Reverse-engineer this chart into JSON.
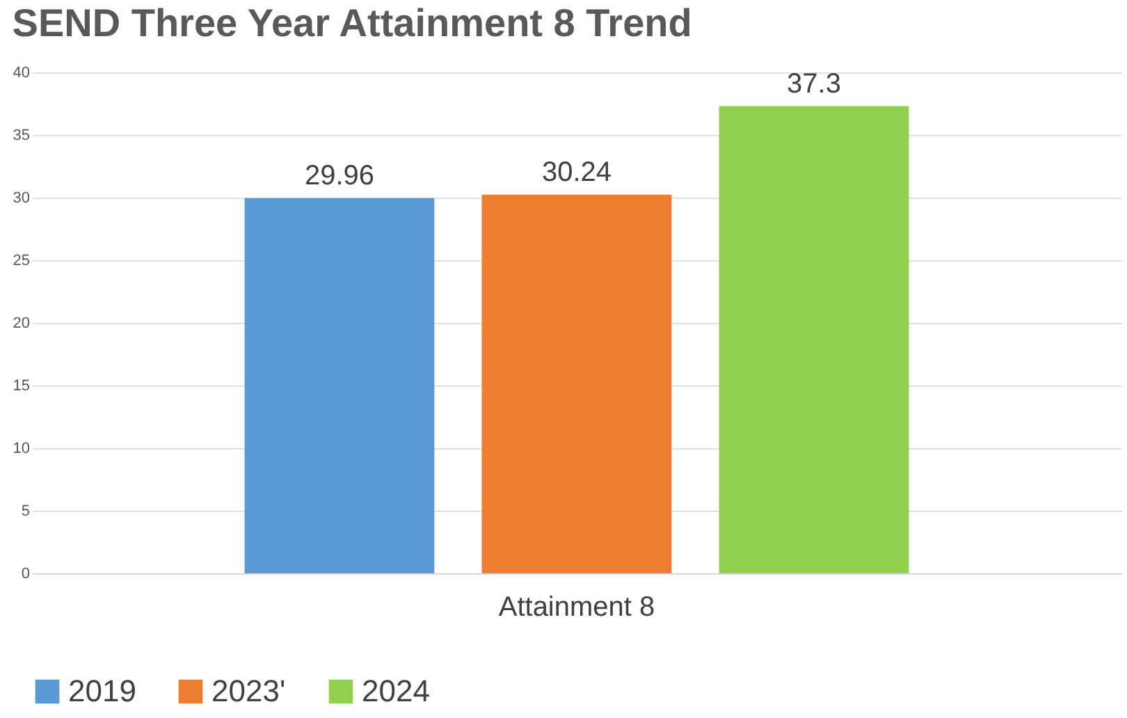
{
  "chart_data": {
    "type": "bar",
    "title": "SEND Three Year Attainment 8 Trend",
    "categories": [
      "Attainment 8"
    ],
    "series": [
      {
        "name": "2019",
        "color": "#5b9bd5",
        "values": [
          29.96
        ]
      },
      {
        "name": "2023'",
        "color": "#ed7d31",
        "values": [
          30.24
        ]
      },
      {
        "name": "2024",
        "color": "#92d050",
        "values": [
          37.3
        ]
      }
    ],
    "ylim": [
      0,
      40
    ],
    "yticks": [
      0,
      5,
      10,
      15,
      20,
      25,
      30,
      35,
      40
    ],
    "grid": "y",
    "legend": "bottom",
    "data_labels": true
  }
}
